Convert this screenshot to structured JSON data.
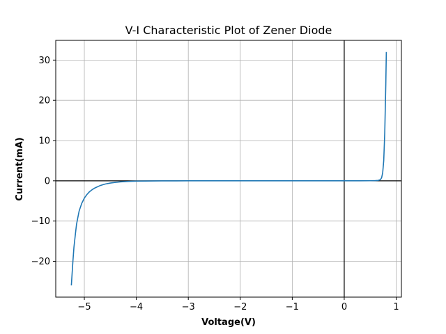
{
  "chart_data": {
    "type": "line",
    "title": "V-I Characteristic Plot of Zener Diode",
    "xlabel": "Voltage(V)",
    "ylabel": "Current(mA)",
    "xlim": [
      -5.55,
      1.1
    ],
    "ylim": [
      -28.9,
      34.9
    ],
    "xticks": [
      -5,
      -4,
      -3,
      -2,
      -1,
      0,
      1
    ],
    "yticks": [
      -20,
      -10,
      0,
      10,
      20,
      30
    ],
    "xtick_labels": [
      "−5",
      "−4",
      "−3",
      "−2",
      "−1",
      "0",
      "1"
    ],
    "ytick_labels": [
      "−20",
      "−10",
      "0",
      "10",
      "20",
      "30"
    ],
    "grid": true,
    "reference_lines": {
      "x": 0,
      "y": 0
    },
    "series": [
      {
        "color": "#1f77b4",
        "x": [
          -5.25,
          -5.22,
          -5.2,
          -5.17,
          -5.15,
          -5.12,
          -5.1,
          -5.05,
          -5.0,
          -4.95,
          -4.9,
          -4.85,
          -4.8,
          -4.7,
          -4.6,
          -4.5,
          -4.4,
          -4.3,
          -4.2,
          -4.1,
          -4.0,
          -3.5,
          -3.0,
          -2.0,
          -1.0,
          0.0,
          0.3,
          0.5,
          0.6,
          0.65,
          0.68,
          0.7,
          0.72,
          0.74,
          0.76,
          0.78,
          0.8,
          0.81
        ],
        "y": [
          -26.0,
          -20.0,
          -16.5,
          -13.0,
          -10.8,
          -8.8,
          -7.5,
          -5.6,
          -4.3,
          -3.4,
          -2.7,
          -2.2,
          -1.8,
          -1.2,
          -0.8,
          -0.55,
          -0.38,
          -0.26,
          -0.18,
          -0.12,
          -0.08,
          -0.02,
          0.0,
          0.0,
          0.0,
          0.0,
          0.0,
          0.02,
          0.05,
          0.1,
          0.2,
          0.35,
          0.8,
          2.0,
          5.0,
          12.0,
          24.0,
          32.0
        ]
      }
    ]
  },
  "colors": {
    "line": "#1f77b4",
    "grid": "#b0b0b0",
    "axes": "#000000"
  }
}
